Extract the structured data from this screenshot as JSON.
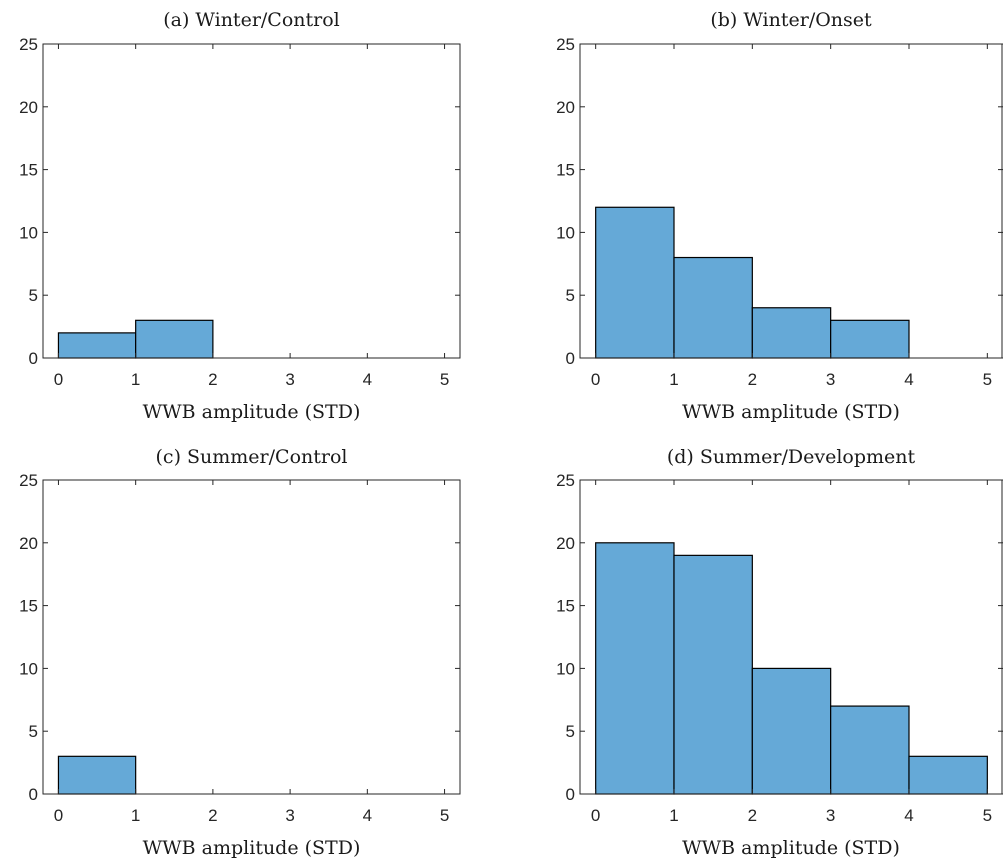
{
  "chart_data": [
    {
      "type": "bar",
      "title": "(a) Winter/Control",
      "xlabel": "WWB amplitude (STD)",
      "ylabel": "",
      "bin_edges": [
        0,
        1,
        2,
        3,
        4,
        5
      ],
      "values": [
        2,
        3,
        0,
        0,
        0
      ],
      "xlim": [
        -0.2,
        5.2
      ],
      "ylim": [
        0,
        25
      ],
      "xticks": [
        "0",
        "1",
        "2",
        "3",
        "4",
        "5"
      ],
      "yticks": [
        "0",
        "5",
        "10",
        "15",
        "20",
        "25"
      ],
      "grid": false,
      "bar_color": "#65a9d7"
    },
    {
      "type": "bar",
      "title": "(b) Winter/Onset",
      "xlabel": "WWB amplitude (STD)",
      "ylabel": "",
      "bin_edges": [
        0,
        1,
        2,
        3,
        4,
        5
      ],
      "values": [
        12,
        8,
        4,
        3,
        0
      ],
      "xlim": [
        -0.2,
        5.2
      ],
      "ylim": [
        0,
        25
      ],
      "xticks": [
        "0",
        "1",
        "2",
        "3",
        "4",
        "5"
      ],
      "yticks": [
        "0",
        "5",
        "10",
        "15",
        "20",
        "25"
      ],
      "grid": false,
      "bar_color": "#65a9d7"
    },
    {
      "type": "bar",
      "title": "(c) Summer/Control",
      "xlabel": "WWB amplitude (STD)",
      "ylabel": "",
      "bin_edges": [
        0,
        1,
        2,
        3,
        4,
        5
      ],
      "values": [
        3,
        0,
        0,
        0,
        0
      ],
      "xlim": [
        -0.2,
        5.2
      ],
      "ylim": [
        0,
        25
      ],
      "xticks": [
        "0",
        "1",
        "2",
        "3",
        "4",
        "5"
      ],
      "yticks": [
        "0",
        "5",
        "10",
        "15",
        "20",
        "25"
      ],
      "grid": false,
      "bar_color": "#65a9d7"
    },
    {
      "type": "bar",
      "title": "(d) Summer/Development",
      "xlabel": "WWB amplitude (STD)",
      "ylabel": "",
      "bin_edges": [
        0,
        1,
        2,
        3,
        4,
        5
      ],
      "values": [
        20,
        19,
        10,
        7,
        3
      ],
      "xlim": [
        -0.2,
        5.2
      ],
      "ylim": [
        0,
        25
      ],
      "xticks": [
        "0",
        "1",
        "2",
        "3",
        "4",
        "5"
      ],
      "yticks": [
        "0",
        "5",
        "10",
        "15",
        "20",
        "25"
      ],
      "grid": false,
      "bar_color": "#65a9d7"
    }
  ]
}
